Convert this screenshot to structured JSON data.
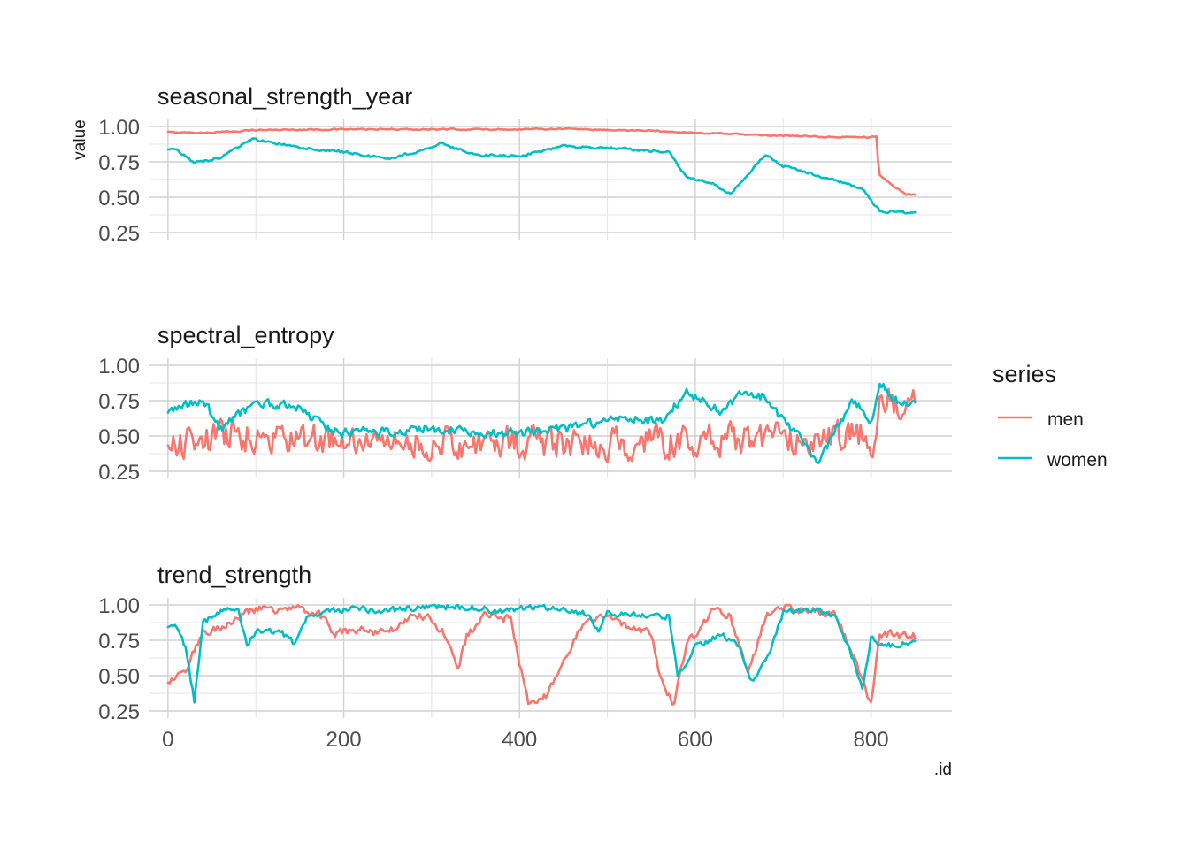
{
  "chart_data": {
    "type": "line",
    "xlabel": ".id",
    "ylabel": "value",
    "xlim": [
      -22,
      892
    ],
    "x_ticks": [
      0,
      200,
      400,
      600,
      800
    ],
    "y_ticks": [
      0.25,
      0.5,
      0.75,
      1.0
    ],
    "y_tick_labels": [
      "0.25",
      "0.50",
      "0.75",
      "1.00"
    ],
    "grid": true,
    "legend": {
      "title": "series",
      "position": "right",
      "entries": [
        {
          "name": "men",
          "color": "#F8766D"
        },
        {
          "name": "women",
          "color": "#00BFC4"
        }
      ]
    },
    "facets": [
      {
        "title": "seasonal_strength_year",
        "ylim": [
          0.2,
          1.05
        ],
        "series": [
          {
            "name": "men",
            "color": "#F8766D",
            "noise": 0.004,
            "points": [
              [
                0,
                0.96
              ],
              [
                40,
                0.955
              ],
              [
                60,
                0.96
              ],
              [
                100,
                0.975
              ],
              [
                200,
                0.98
              ],
              [
                300,
                0.98
              ],
              [
                400,
                0.98
              ],
              [
                450,
                0.985
              ],
              [
                500,
                0.975
              ],
              [
                550,
                0.97
              ],
              [
                600,
                0.955
              ],
              [
                650,
                0.945
              ],
              [
                700,
                0.935
              ],
              [
                750,
                0.925
              ],
              [
                800,
                0.925
              ],
              [
                806,
                0.93
              ],
              [
                809,
                0.66
              ],
              [
                825,
                0.58
              ],
              [
                840,
                0.52
              ],
              [
                850,
                0.52
              ]
            ]
          },
          {
            "name": "women",
            "color": "#00BFC4",
            "noise": 0.008,
            "points": [
              [
                0,
                0.83
              ],
              [
                10,
                0.84
              ],
              [
                30,
                0.74
              ],
              [
                60,
                0.78
              ],
              [
                95,
                0.91
              ],
              [
                150,
                0.85
              ],
              [
                200,
                0.82
              ],
              [
                250,
                0.77
              ],
              [
                300,
                0.85
              ],
              [
                310,
                0.88
              ],
              [
                350,
                0.8
              ],
              [
                400,
                0.79
              ],
              [
                450,
                0.86
              ],
              [
                500,
                0.85
              ],
              [
                570,
                0.82
              ],
              [
                590,
                0.64
              ],
              [
                620,
                0.6
              ],
              [
                640,
                0.52
              ],
              [
                680,
                0.8
              ],
              [
                700,
                0.72
              ],
              [
                760,
                0.62
              ],
              [
                790,
                0.56
              ],
              [
                800,
                0.48
              ],
              [
                810,
                0.4
              ],
              [
                850,
                0.39
              ]
            ]
          }
        ]
      },
      {
        "title": "spectral_entropy",
        "ylim": [
          0.2,
          1.05
        ],
        "series": [
          {
            "name": "men",
            "color": "#F8766D",
            "noise": 0.1,
            "points": [
              [
                0,
                0.42
              ],
              [
                60,
                0.5
              ],
              [
                100,
                0.5
              ],
              [
                200,
                0.45
              ],
              [
                300,
                0.45
              ],
              [
                400,
                0.45
              ],
              [
                500,
                0.45
              ],
              [
                600,
                0.46
              ],
              [
                700,
                0.48
              ],
              [
                790,
                0.5
              ],
              [
                805,
                0.4
              ],
              [
                810,
                0.82
              ],
              [
                830,
                0.72
              ],
              [
                850,
                0.74
              ]
            ]
          },
          {
            "name": "women",
            "color": "#00BFC4",
            "noise": 0.03,
            "points": [
              [
                0,
                0.68
              ],
              [
                40,
                0.75
              ],
              [
                60,
                0.55
              ],
              [
                100,
                0.74
              ],
              [
                150,
                0.7
              ],
              [
                180,
                0.55
              ],
              [
                200,
                0.52
              ],
              [
                300,
                0.55
              ],
              [
                400,
                0.52
              ],
              [
                450,
                0.55
              ],
              [
                490,
                0.6
              ],
              [
                520,
                0.62
              ],
              [
                560,
                0.6
              ],
              [
                590,
                0.8
              ],
              [
                630,
                0.68
              ],
              [
                650,
                0.78
              ],
              [
                680,
                0.78
              ],
              [
                700,
                0.6
              ],
              [
                720,
                0.5
              ],
              [
                740,
                0.3
              ],
              [
                760,
                0.55
              ],
              [
                780,
                0.75
              ],
              [
                800,
                0.6
              ],
              [
                810,
                0.87
              ],
              [
                830,
                0.75
              ],
              [
                850,
                0.74
              ]
            ]
          }
        ]
      },
      {
        "title": "trend_strength",
        "ylim": [
          0.2,
          1.05
        ],
        "series": [
          {
            "name": "men",
            "color": "#F8766D",
            "noise": 0.025,
            "points": [
              [
                0,
                0.45
              ],
              [
                20,
                0.55
              ],
              [
                40,
                0.8
              ],
              [
                60,
                0.85
              ],
              [
                100,
                0.97
              ],
              [
                150,
                0.97
              ],
              [
                170,
                0.95
              ],
              [
                190,
                0.8
              ],
              [
                220,
                0.82
              ],
              [
                250,
                0.8
              ],
              [
                280,
                0.93
              ],
              [
                300,
                0.9
              ],
              [
                320,
                0.75
              ],
              [
                330,
                0.55
              ],
              [
                340,
                0.78
              ],
              [
                360,
                0.92
              ],
              [
                390,
                0.9
              ],
              [
                400,
                0.6
              ],
              [
                410,
                0.3
              ],
              [
                430,
                0.35
              ],
              [
                450,
                0.6
              ],
              [
                470,
                0.85
              ],
              [
                500,
                0.94
              ],
              [
                520,
                0.85
              ],
              [
                550,
                0.8
              ],
              [
                560,
                0.5
              ],
              [
                575,
                0.3
              ],
              [
                590,
                0.72
              ],
              [
                620,
                0.96
              ],
              [
                640,
                0.92
              ],
              [
                660,
                0.5
              ],
              [
                680,
                0.92
              ],
              [
                700,
                0.98
              ],
              [
                730,
                0.97
              ],
              [
                760,
                0.92
              ],
              [
                780,
                0.65
              ],
              [
                800,
                0.3
              ],
              [
                810,
                0.8
              ],
              [
                850,
                0.78
              ]
            ]
          },
          {
            "name": "women",
            "color": "#00BFC4",
            "noise": 0.02,
            "points": [
              [
                0,
                0.85
              ],
              [
                10,
                0.85
              ],
              [
                20,
                0.7
              ],
              [
                30,
                0.32
              ],
              [
                40,
                0.88
              ],
              [
                60,
                0.96
              ],
              [
                80,
                0.95
              ],
              [
                90,
                0.7
              ],
              [
                100,
                0.82
              ],
              [
                130,
                0.8
              ],
              [
                145,
                0.72
              ],
              [
                160,
                0.93
              ],
              [
                200,
                0.97
              ],
              [
                250,
                0.96
              ],
              [
                300,
                0.99
              ],
              [
                350,
                0.98
              ],
              [
                380,
                0.95
              ],
              [
                400,
                0.98
              ],
              [
                450,
                0.98
              ],
              [
                480,
                0.93
              ],
              [
                490,
                0.82
              ],
              [
                500,
                0.94
              ],
              [
                550,
                0.93
              ],
              [
                570,
                0.92
              ],
              [
                580,
                0.5
              ],
              [
                600,
                0.7
              ],
              [
                630,
                0.8
              ],
              [
                650,
                0.7
              ],
              [
                665,
                0.45
              ],
              [
                680,
                0.6
              ],
              [
                700,
                0.95
              ],
              [
                730,
                0.97
              ],
              [
                760,
                0.92
              ],
              [
                780,
                0.6
              ],
              [
                790,
                0.4
              ],
              [
                800,
                0.78
              ],
              [
                810,
                0.7
              ],
              [
                850,
                0.75
              ]
            ]
          }
        ]
      }
    ]
  }
}
